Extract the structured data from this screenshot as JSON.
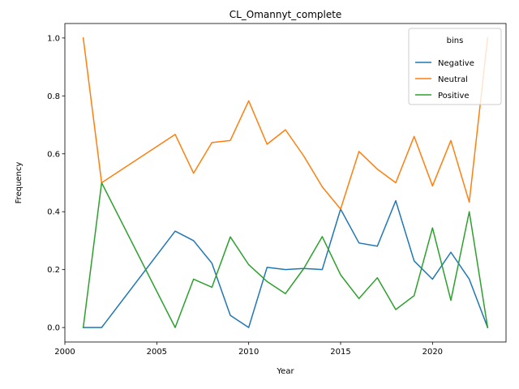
{
  "chart_data": {
    "type": "line",
    "title": "CL_Omannyt_complete",
    "xlabel": "Year",
    "ylabel": "Frequency",
    "xlim": [
      2000,
      2024
    ],
    "ylim": [
      -0.05,
      1.05
    ],
    "xticks": [
      2000,
      2005,
      2010,
      2015,
      2020
    ],
    "yticks": [
      0.0,
      0.2,
      0.4,
      0.6,
      0.8,
      1.0
    ],
    "x": [
      2001,
      2002,
      2006,
      2007,
      2008,
      2009,
      2010,
      2011,
      2012,
      2013,
      2014,
      2015,
      2016,
      2017,
      2018,
      2019,
      2020,
      2021,
      2022,
      2023
    ],
    "legend": {
      "title": "bins",
      "placement": "upper-right"
    },
    "grid": false,
    "series": [
      {
        "name": "Negative",
        "color": "#1f77b4",
        "values": [
          0.0,
          0.0,
          0.333,
          0.3,
          0.222,
          0.042,
          0.0,
          0.208,
          0.2,
          0.204,
          0.2,
          0.409,
          0.292,
          0.281,
          0.438,
          0.23,
          0.167,
          0.26,
          0.167,
          0.0
        ]
      },
      {
        "name": "Neutral",
        "color": "#ff7f0e",
        "values": [
          1.0,
          0.5,
          0.667,
          0.533,
          0.639,
          0.646,
          0.783,
          0.633,
          0.683,
          0.592,
          0.486,
          0.409,
          0.608,
          0.547,
          0.5,
          0.66,
          0.489,
          0.646,
          0.433,
          1.0
        ]
      },
      {
        "name": "Positive",
        "color": "#2ca02c",
        "values": [
          0.0,
          0.5,
          0.0,
          0.167,
          0.139,
          0.313,
          0.217,
          0.159,
          0.117,
          0.204,
          0.314,
          0.182,
          0.1,
          0.172,
          0.062,
          0.11,
          0.344,
          0.094,
          0.4,
          0.0
        ]
      }
    ]
  }
}
